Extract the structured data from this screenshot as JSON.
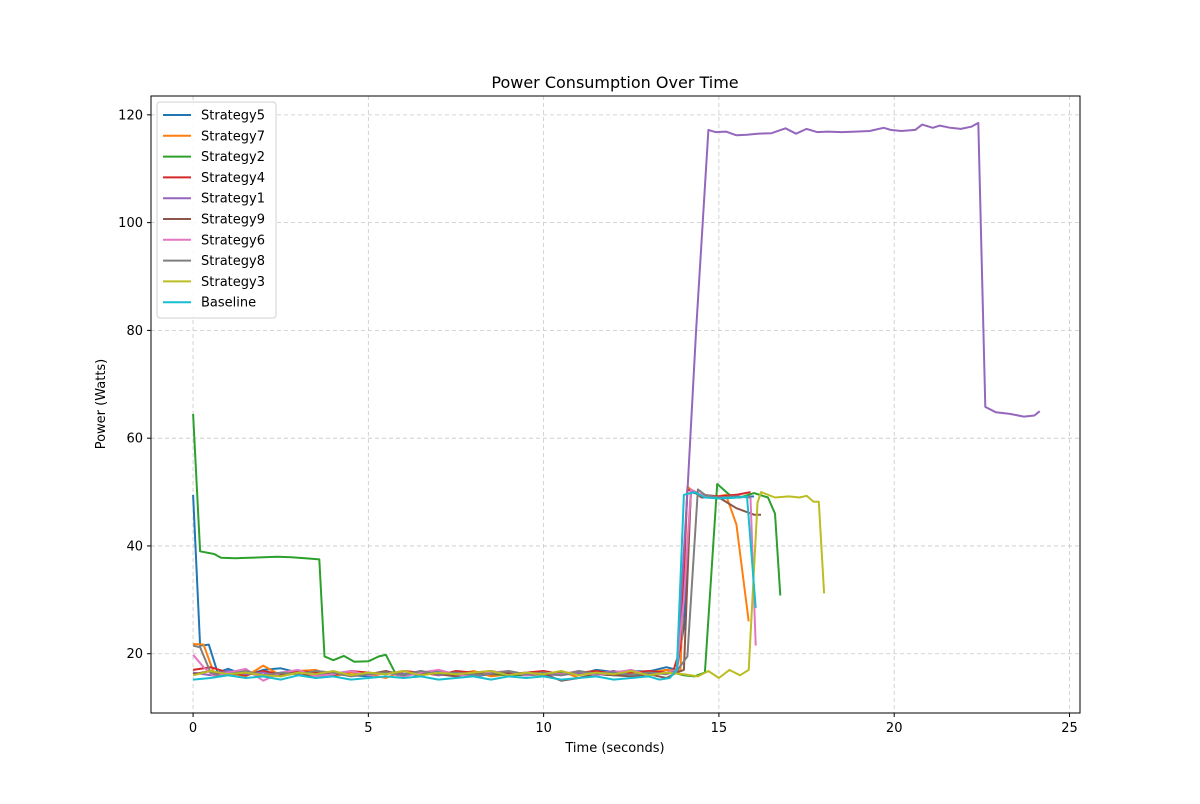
{
  "chart_data": {
    "type": "line",
    "title": "Power Consumption Over Time",
    "xlabel": "Time (seconds)",
    "ylabel": "Power (Watts)",
    "xlim": [
      -1.2,
      25.3
    ],
    "ylim": [
      9,
      123.5
    ],
    "x_ticks": [
      0,
      5,
      10,
      15,
      20,
      25
    ],
    "y_ticks": [
      20,
      40,
      60,
      80,
      100,
      120
    ],
    "grid": true,
    "legend_position": "top-left",
    "series": [
      {
        "name": "Strategy5",
        "color": "#1f77b4",
        "x": [
          0,
          0.2,
          0.45,
          0.7,
          1.0,
          1.5,
          2.0,
          2.5,
          3.0,
          3.5,
          4.0,
          4.5,
          5.0,
          5.5,
          6.0,
          6.5,
          7.0,
          7.5,
          8.0,
          8.5,
          9.0,
          9.5,
          10.0,
          10.5,
          11.0,
          11.5,
          12.0,
          12.5,
          13.0,
          13.5,
          13.8,
          14.0,
          14.2,
          14.5,
          15.0,
          15.5,
          16.0
        ],
        "y": [
          49.5,
          21.5,
          21.7,
          16.5,
          17.2,
          16.0,
          17.0,
          17.3,
          16.5,
          16.8,
          16.2,
          16.0,
          15.8,
          16.6,
          16.3,
          16.0,
          16.8,
          16.2,
          15.8,
          16.2,
          16.1,
          16.0,
          16.2,
          16.4,
          16.1,
          17.0,
          16.6,
          16.8,
          16.7,
          17.5,
          17.0,
          25.0,
          50.0,
          49.5,
          48.8,
          49.0,
          49.2
        ]
      },
      {
        "name": "Strategy7",
        "color": "#ff7f0e",
        "x": [
          0,
          0.3,
          0.6,
          1.0,
          1.5,
          2.0,
          2.5,
          3.0,
          3.5,
          4.0,
          4.5,
          5.0,
          5.5,
          6.0,
          6.5,
          7.0,
          7.5,
          8.0,
          8.5,
          9.0,
          9.5,
          10.0,
          10.5,
          11.0,
          11.5,
          12.0,
          12.5,
          13.0,
          13.5,
          13.9,
          14.1,
          14.4,
          14.8,
          15.2,
          15.5,
          15.85
        ],
        "y": [
          21.8,
          21.7,
          16.3,
          16.5,
          15.8,
          17.8,
          16.0,
          16.8,
          17.0,
          15.8,
          16.5,
          16.2,
          15.5,
          16.8,
          16.0,
          16.5,
          16.0,
          16.8,
          15.8,
          16.2,
          16.5,
          16.0,
          16.8,
          15.5,
          16.3,
          16.8,
          16.0,
          16.5,
          17.0,
          16.8,
          51.0,
          49.5,
          49.0,
          49.5,
          44.0,
          26.0
        ]
      },
      {
        "name": "Strategy2",
        "color": "#2ca02c",
        "x": [
          0,
          0.2,
          0.6,
          0.8,
          1.2,
          1.6,
          2.0,
          2.4,
          2.8,
          3.2,
          3.6,
          3.75,
          4.0,
          4.3,
          4.6,
          5.0,
          5.3,
          5.5,
          5.8,
          6.5,
          7.0,
          8.0,
          9.0,
          10.0,
          11.0,
          12.0,
          13.0,
          13.7,
          14.0,
          14.3,
          14.6,
          14.95,
          15.3,
          15.6,
          16.0,
          16.4,
          16.6,
          16.75
        ],
        "y": [
          64.5,
          39.0,
          38.5,
          37.8,
          37.7,
          37.8,
          37.9,
          38.0,
          37.9,
          37.7,
          37.5,
          19.5,
          18.8,
          19.6,
          18.5,
          18.6,
          19.5,
          19.8,
          16.0,
          16.5,
          16.2,
          16.5,
          16.0,
          16.2,
          16.5,
          16.0,
          16.2,
          16.5,
          16.0,
          15.8,
          16.5,
          51.5,
          49.5,
          49.0,
          49.8,
          49.0,
          46.0,
          30.8
        ]
      },
      {
        "name": "Strategy4",
        "color": "#d62728",
        "x": [
          0,
          0.5,
          1.0,
          1.5,
          2.0,
          2.5,
          3.0,
          3.5,
          4.0,
          4.5,
          5.0,
          5.5,
          6.0,
          6.5,
          7.0,
          7.5,
          8.0,
          8.5,
          9.0,
          9.5,
          10.0,
          10.5,
          11.0,
          11.5,
          12.0,
          12.5,
          13.0,
          13.5,
          13.7,
          13.9,
          14.1,
          14.3,
          14.5,
          15.0,
          15.5,
          15.9
        ],
        "y": [
          17.0,
          17.5,
          16.5,
          16.0,
          16.8,
          16.2,
          16.8,
          16.5,
          16.0,
          16.8,
          16.5,
          16.2,
          16.8,
          16.5,
          16.0,
          16.8,
          16.5,
          16.8,
          16.2,
          16.5,
          16.8,
          16.2,
          16.5,
          16.8,
          16.3,
          16.5,
          16.8,
          16.5,
          16.8,
          21.0,
          50.5,
          50.0,
          49.5,
          49.2,
          49.5,
          50.0
        ]
      },
      {
        "name": "Strategy1",
        "color": "#9467bd",
        "x": [
          0,
          0.5,
          1.0,
          1.5,
          2.0,
          2.5,
          3.0,
          3.5,
          4.0,
          4.5,
          5.0,
          5.5,
          6.0,
          6.5,
          7.0,
          7.5,
          8.0,
          8.5,
          9.0,
          9.5,
          10.0,
          10.5,
          11.0,
          11.5,
          12.0,
          12.5,
          13.0,
          13.5,
          13.8,
          14.1,
          14.35,
          14.7,
          14.9,
          15.2,
          15.5,
          15.8,
          16.1,
          16.5,
          16.9,
          17.2,
          17.5,
          17.8,
          18.1,
          18.5,
          18.9,
          19.3,
          19.7,
          19.9,
          20.2,
          20.6,
          20.8,
          21.1,
          21.3,
          21.6,
          21.9,
          22.2,
          22.4,
          22.6,
          22.9,
          23.3,
          23.7,
          24.0,
          24.15
        ],
        "y": [
          16.5,
          16.0,
          16.8,
          16.2,
          16.5,
          15.8,
          16.5,
          16.0,
          16.3,
          16.8,
          16.0,
          16.5,
          16.2,
          16.8,
          16.0,
          16.5,
          16.2,
          16.8,
          16.0,
          16.5,
          16.2,
          16.0,
          16.5,
          16.2,
          16.8,
          16.0,
          16.5,
          16.3,
          16.8,
          50.0,
          80.0,
          117.2,
          116.8,
          116.9,
          116.2,
          116.3,
          116.5,
          116.6,
          117.5,
          116.5,
          117.4,
          116.8,
          116.9,
          116.8,
          116.9,
          117.0,
          117.6,
          117.2,
          117.0,
          117.2,
          118.2,
          117.6,
          118.0,
          117.6,
          117.4,
          117.8,
          118.5,
          65.8,
          64.8,
          64.5,
          64.0,
          64.2,
          65.0
        ]
      },
      {
        "name": "Strategy9",
        "color": "#8c564b",
        "x": [
          0,
          0.5,
          1.0,
          1.5,
          2.0,
          2.5,
          3.0,
          3.5,
          4.0,
          4.5,
          5.0,
          5.5,
          6.0,
          6.5,
          7.0,
          7.5,
          8.0,
          8.5,
          9.0,
          9.5,
          10.0,
          10.5,
          11.0,
          11.5,
          12.0,
          12.5,
          13.0,
          13.5,
          13.8,
          14.0,
          14.2,
          14.5,
          15.0,
          15.5,
          16.0,
          16.2
        ],
        "y": [
          16.2,
          16.8,
          16.0,
          16.5,
          15.8,
          16.2,
          16.5,
          15.5,
          16.5,
          16.0,
          16.2,
          16.8,
          16.0,
          16.5,
          16.2,
          15.8,
          16.5,
          16.2,
          16.5,
          16.0,
          16.3,
          15.0,
          15.5,
          16.2,
          16.0,
          15.8,
          16.2,
          15.5,
          16.5,
          17.0,
          50.5,
          49.0,
          49.0,
          47.0,
          45.8,
          45.8
        ]
      },
      {
        "name": "Strategy6",
        "color": "#e377c2",
        "x": [
          0,
          0.3,
          0.6,
          1.0,
          1.5,
          2.0,
          2.5,
          3.0,
          3.5,
          4.0,
          4.5,
          5.0,
          5.5,
          6.0,
          6.5,
          7.0,
          7.5,
          8.0,
          8.5,
          9.0,
          9.5,
          10.0,
          10.5,
          11.0,
          11.5,
          12.0,
          12.5,
          13.0,
          13.5,
          13.8,
          14.0,
          14.2,
          14.5,
          15.0,
          15.5,
          15.9,
          16.05
        ],
        "y": [
          19.8,
          17.5,
          15.8,
          16.5,
          17.2,
          15.0,
          16.5,
          17.0,
          15.8,
          16.2,
          16.8,
          16.0,
          16.5,
          15.8,
          16.5,
          17.0,
          16.2,
          15.8,
          16.5,
          16.8,
          16.0,
          16.5,
          16.2,
          16.8,
          16.0,
          16.5,
          17.0,
          16.0,
          16.5,
          17.0,
          30.0,
          50.5,
          49.5,
          49.0,
          49.2,
          49.0,
          21.5
        ]
      },
      {
        "name": "Strategy8",
        "color": "#7f7f7f",
        "x": [
          0,
          0.2,
          0.5,
          0.8,
          1.0,
          1.5,
          2.0,
          2.5,
          3.0,
          3.5,
          4.0,
          4.5,
          5.0,
          5.5,
          6.0,
          6.5,
          7.0,
          7.5,
          8.0,
          8.5,
          9.0,
          9.5,
          10.0,
          10.5,
          11.0,
          11.5,
          12.0,
          12.5,
          13.0,
          13.5,
          13.8,
          14.1,
          14.4,
          14.6,
          15.0,
          15.5,
          15.9
        ],
        "y": [
          21.5,
          21.2,
          16.5,
          15.8,
          16.2,
          16.8,
          16.0,
          16.5,
          16.2,
          16.8,
          16.5,
          15.8,
          16.2,
          16.5,
          16.0,
          16.8,
          16.2,
          16.5,
          16.0,
          16.3,
          16.8,
          16.2,
          16.5,
          16.0,
          16.8,
          16.3,
          16.5,
          16.0,
          16.5,
          16.2,
          16.8,
          19.5,
          50.5,
          49.5,
          49.0,
          49.2,
          49.0
        ]
      },
      {
        "name": "Strategy3",
        "color": "#bcbd22",
        "x": [
          0,
          0.5,
          1.0,
          1.5,
          2.0,
          2.5,
          3.0,
          3.5,
          4.0,
          4.5,
          5.0,
          5.5,
          6.0,
          6.5,
          7.0,
          7.5,
          8.0,
          8.5,
          9.0,
          9.5,
          10.0,
          10.5,
          11.0,
          11.5,
          12.0,
          12.5,
          13.0,
          13.5,
          14.0,
          14.4,
          14.7,
          15.0,
          15.3,
          15.6,
          15.85,
          16.1,
          16.2,
          16.6,
          17.0,
          17.3,
          17.5,
          17.7,
          17.85,
          18.0
        ],
        "y": [
          16.0,
          16.8,
          16.2,
          16.5,
          16.0,
          15.8,
          16.5,
          16.2,
          16.8,
          16.0,
          16.5,
          16.2,
          16.8,
          16.0,
          16.5,
          16.2,
          16.5,
          16.8,
          16.0,
          16.5,
          16.2,
          16.8,
          16.0,
          16.5,
          16.2,
          16.8,
          16.0,
          16.5,
          16.2,
          15.8,
          16.8,
          15.5,
          17.0,
          16.0,
          17.0,
          48.0,
          50.0,
          49.0,
          49.2,
          49.0,
          49.3,
          48.2,
          48.2,
          31.2
        ]
      },
      {
        "name": "Baseline",
        "color": "#17becf",
        "x": [
          0,
          0.5,
          1.0,
          1.5,
          2.0,
          2.5,
          3.0,
          3.5,
          4.0,
          4.5,
          5.0,
          5.5,
          6.0,
          6.5,
          7.0,
          7.5,
          8.0,
          8.5,
          9.0,
          9.5,
          10.0,
          10.5,
          11.0,
          11.5,
          12.0,
          12.5,
          13.0,
          13.3,
          13.6,
          13.8,
          14.0,
          14.3,
          14.6,
          15.0,
          15.5,
          15.8,
          16.05
        ],
        "y": [
          15.2,
          15.5,
          16.0,
          15.5,
          15.8,
          15.2,
          16.0,
          15.5,
          15.8,
          15.2,
          15.5,
          15.8,
          15.5,
          15.8,
          15.2,
          15.5,
          15.8,
          15.2,
          15.8,
          15.5,
          15.8,
          15.2,
          15.5,
          15.8,
          15.2,
          15.5,
          15.8,
          15.2,
          15.5,
          17.0,
          49.5,
          50.0,
          49.0,
          48.8,
          49.0,
          49.2,
          28.5
        ]
      }
    ]
  }
}
